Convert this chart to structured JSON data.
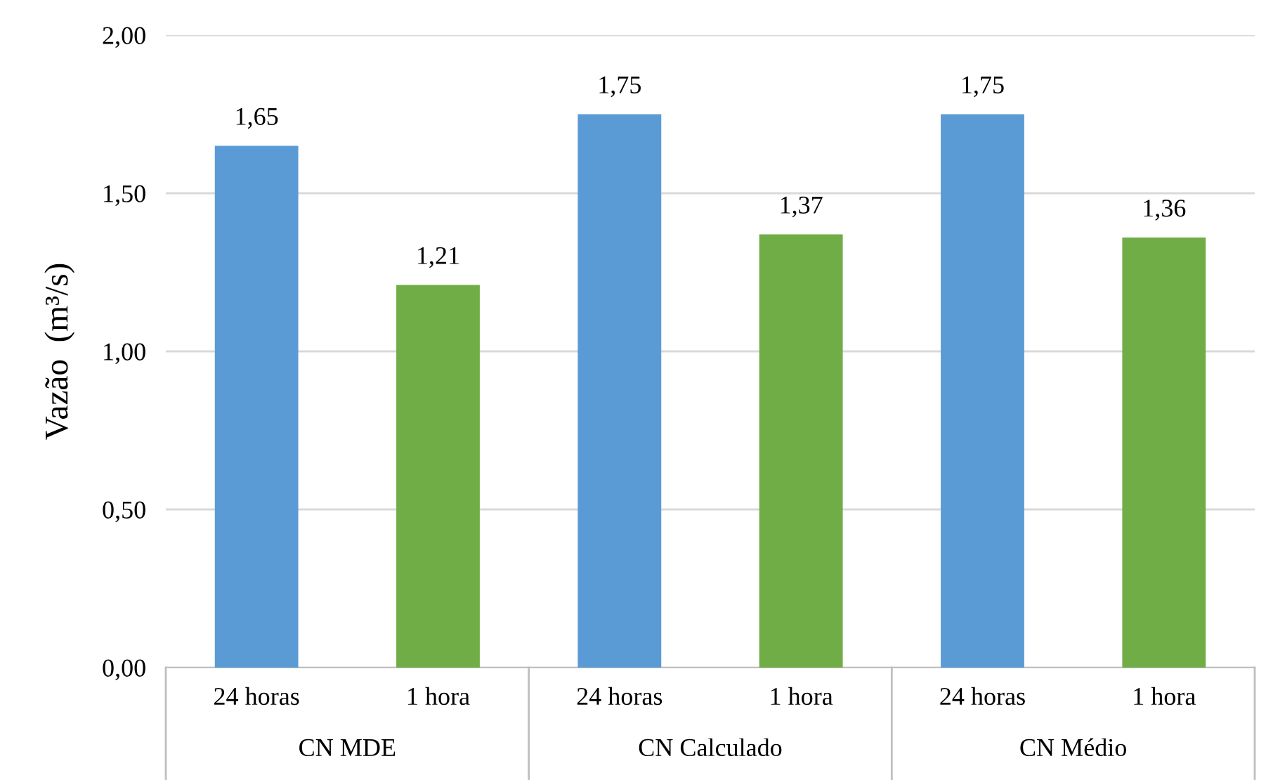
{
  "chart_data": {
    "type": "bar",
    "ylabel": "Vazão  (m³/s)",
    "categories": [
      "24 horas",
      "1 hora",
      "24 horas",
      "1 hora",
      "24 horas",
      "1 hora"
    ],
    "values": [
      1.65,
      1.21,
      1.75,
      1.37,
      1.75,
      1.36
    ],
    "value_labels": [
      "1,65",
      "1,21",
      "1,75",
      "1,37",
      "1,75",
      "1,36"
    ],
    "colors": [
      "#5b9bd5",
      "#70ad47",
      "#5b9bd5",
      "#70ad47",
      "#5b9bd5",
      "#70ad47"
    ],
    "ylim": [
      0,
      2
    ],
    "yticks": [
      {
        "value": 0,
        "label": "0,00"
      },
      {
        "value": 0.5,
        "label": "0,50"
      },
      {
        "value": 1,
        "label": "1,00"
      },
      {
        "value": 1.5,
        "label": "1,50"
      },
      {
        "value": 2,
        "label": "2,00"
      }
    ],
    "grid": "y",
    "annotations": [
      "CN MDE",
      "CN Calculado",
      "CN Médio"
    ]
  }
}
